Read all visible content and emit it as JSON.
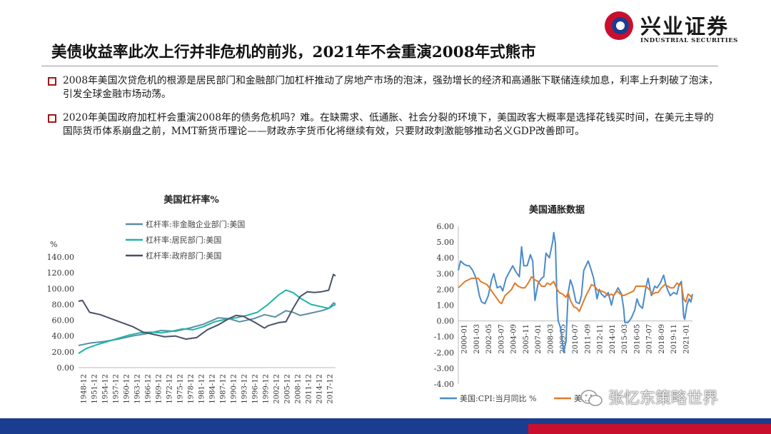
{
  "logo": {
    "cn": "兴业证券",
    "en": "INDUSTRIAL SECURITIES"
  },
  "title": "美债收益率此次上行并非危机的前兆，2021年不会重演2008年式熊市",
  "bullets": [
    "2008年美国次贷危机的根源是居民部门和金融部门加杠杆推动了房地产市场的泡沫，强劲增长的经济和高通胀下联储连续加息，利率上升刺破了泡沫，引发全球金融市场动荡。",
    "2020年美国政府加杠杆会重演2008年的债务危机吗？难。在缺需求、低通胀、社会分裂的环境下，美国政客大概率是选择花钱买时间，在美元主导的国际货币体系崩盘之前，MMT新货币理论——财政赤字货币化将继续有效，只要财政刺激能够推动名义GDP改善即可。"
  ],
  "watermark": "张忆东策略世界",
  "colors": {
    "brand_blue": "#1b3d8f",
    "brand_red": "#c8102e",
    "bullet_red": "#a01818"
  },
  "chart_data": [
    {
      "type": "line",
      "title": "美国杠杆率%",
      "ylabel": "%",
      "ylim": [
        0,
        140
      ],
      "yticks": [
        "0.00",
        "20.00",
        "40.00",
        "60.00",
        "80.00",
        "100.00",
        "120.00",
        "140.00"
      ],
      "xticks": [
        "1948-12",
        "1951-12",
        "1954-12",
        "1957-12",
        "1960-12",
        "1963-12",
        "1966-12",
        "1969-12",
        "1972-12",
        "1975-12",
        "1978-12",
        "1981-12",
        "1984-12",
        "1987-12",
        "1990-12",
        "1993-12",
        "1996-12",
        "1999-12",
        "2002-12",
        "2005-12",
        "2008-12",
        "2011-12",
        "2014-12",
        "2017-12"
      ],
      "xlim": [
        1948.9,
        2020.9
      ],
      "legend": "top-left",
      "series": [
        {
          "name": "杠杆率:非金融企业部门:美国",
          "color": "#5b8ea6",
          "points": [
            [
              1948.9,
              28
            ],
            [
              1952,
              31
            ],
            [
              1956,
              33
            ],
            [
              1960,
              36
            ],
            [
              1964,
              40
            ],
            [
              1968,
              43
            ],
            [
              1972,
              47
            ],
            [
              1976,
              46
            ],
            [
              1980,
              50
            ],
            [
              1984,
              55
            ],
            [
              1988,
              63
            ],
            [
              1991,
              62
            ],
            [
              1994,
              58
            ],
            [
              1998,
              62
            ],
            [
              2001,
              67
            ],
            [
              2004,
              64
            ],
            [
              2007,
              72
            ],
            [
              2009,
              70
            ],
            [
              2011,
              66
            ],
            [
              2014,
              69
            ],
            [
              2017,
              72
            ],
            [
              2019,
              75
            ],
            [
              2020.4,
              82
            ],
            [
              2020.9,
              80
            ]
          ]
        },
        {
          "name": "杠杆率:居民部门:美国",
          "color": "#1fb5a8",
          "points": [
            [
              1948.9,
              18
            ],
            [
              1951,
              24
            ],
            [
              1954,
              29
            ],
            [
              1957,
              33
            ],
            [
              1960,
              37
            ],
            [
              1963,
              41
            ],
            [
              1966,
              44
            ],
            [
              1969,
              45
            ],
            [
              1972,
              44
            ],
            [
              1975,
              46
            ],
            [
              1978,
              49
            ],
            [
              1981,
              48
            ],
            [
              1984,
              52
            ],
            [
              1987,
              58
            ],
            [
              1990,
              61
            ],
            [
              1993,
              63
            ],
            [
              1996,
              66
            ],
            [
              1999,
              70
            ],
            [
              2002,
              80
            ],
            [
              2005,
              92
            ],
            [
              2007,
              98
            ],
            [
              2009,
              95
            ],
            [
              2011,
              88
            ],
            [
              2014,
              80
            ],
            [
              2017,
              77
            ],
            [
              2019,
              75
            ],
            [
              2020.4,
              79
            ],
            [
              2020.9,
              79
            ]
          ]
        },
        {
          "name": "杠杆率:政府部门:美国",
          "color": "#4a5068",
          "points": [
            [
              1948.9,
              84
            ],
            [
              1950,
              85
            ],
            [
              1952,
              70
            ],
            [
              1955,
              67
            ],
            [
              1958,
              62
            ],
            [
              1961,
              57
            ],
            [
              1964,
              52
            ],
            [
              1967,
              45
            ],
            [
              1970,
              42
            ],
            [
              1973,
              39
            ],
            [
              1976,
              40
            ],
            [
              1979,
              36
            ],
            [
              1982,
              38
            ],
            [
              1985,
              48
            ],
            [
              1988,
              54
            ],
            [
              1991,
              62
            ],
            [
              1993,
              66
            ],
            [
              1995,
              65
            ],
            [
              1998,
              58
            ],
            [
              2001,
              50
            ],
            [
              2002,
              53
            ],
            [
              2005,
              57
            ],
            [
              2007,
              58
            ],
            [
              2009,
              75
            ],
            [
              2011,
              90
            ],
            [
              2013,
              96
            ],
            [
              2015,
              95
            ],
            [
              2017,
              96
            ],
            [
              2019,
              98
            ],
            [
              2020.3,
              118
            ],
            [
              2020.9,
              116
            ]
          ]
        }
      ]
    },
    {
      "type": "line",
      "title": "美国通胀数据",
      "ylim": [
        -4,
        6
      ],
      "yticks": [
        "-4.00",
        "-3.00",
        "-2.00",
        "-1.00",
        "0.00",
        "1.00",
        "2.00",
        "3.00",
        "4.00",
        "5.00",
        "6.00"
      ],
      "xticks": [
        "2000-01",
        "2001-03",
        "2002-05",
        "2003-07",
        "2004-09",
        "2005-11",
        "2007-01",
        "2008-03",
        "2009-05",
        "2010-07",
        "2011-09",
        "2012-11",
        "2014-01",
        "2015-03",
        "2016-05",
        "2017-07",
        "2018-09",
        "2019-11",
        "2021-01"
      ],
      "xlim": [
        2000.0,
        2021.1
      ],
      "legend": "bottom",
      "series": [
        {
          "name": "美国:CPI:当月同比 %",
          "color": "#4a8bc9",
          "points": [
            [
              2000.0,
              3.2
            ],
            [
              2000.2,
              3.8
            ],
            [
              2000.5,
              3.6
            ],
            [
              2000.8,
              3.5
            ],
            [
              2001.0,
              3.5
            ],
            [
              2001.3,
              3.2
            ],
            [
              2001.6,
              2.7
            ],
            [
              2001.9,
              1.6
            ],
            [
              2002.1,
              1.2
            ],
            [
              2002.4,
              1.1
            ],
            [
              2002.7,
              1.6
            ],
            [
              2003.0,
              2.6
            ],
            [
              2003.2,
              3.0
            ],
            [
              2003.5,
              2.1
            ],
            [
              2003.8,
              2.2
            ],
            [
              2004.0,
              1.9
            ],
            [
              2004.3,
              2.7
            ],
            [
              2004.6,
              3.1
            ],
            [
              2004.9,
              3.5
            ],
            [
              2005.2,
              3.1
            ],
            [
              2005.5,
              2.8
            ],
            [
              2005.7,
              4.7
            ],
            [
              2005.9,
              3.5
            ],
            [
              2006.2,
              3.5
            ],
            [
              2006.5,
              4.2
            ],
            [
              2006.7,
              3.8
            ],
            [
              2006.9,
              1.3
            ],
            [
              2007.2,
              2.4
            ],
            [
              2007.5,
              2.7
            ],
            [
              2007.7,
              2.8
            ],
            [
              2007.9,
              4.3
            ],
            [
              2008.2,
              4.0
            ],
            [
              2008.5,
              5.0
            ],
            [
              2008.6,
              5.6
            ],
            [
              2008.75,
              4.9
            ],
            [
              2008.9,
              1.1
            ],
            [
              2009.0,
              0.0
            ],
            [
              2009.2,
              -0.4
            ],
            [
              2009.5,
              -2.0
            ],
            [
              2009.7,
              -1.3
            ],
            [
              2009.9,
              1.8
            ],
            [
              2010.1,
              2.6
            ],
            [
              2010.3,
              2.2
            ],
            [
              2010.6,
              1.2
            ],
            [
              2010.9,
              1.1
            ],
            [
              2011.1,
              1.6
            ],
            [
              2011.3,
              3.2
            ],
            [
              2011.7,
              3.8
            ],
            [
              2011.9,
              3.4
            ],
            [
              2012.2,
              2.7
            ],
            [
              2012.5,
              1.4
            ],
            [
              2012.7,
              2.0
            ],
            [
              2012.9,
              1.7
            ],
            [
              2013.2,
              1.5
            ],
            [
              2013.5,
              1.8
            ],
            [
              2013.8,
              1.0
            ],
            [
              2014.0,
              1.6
            ],
            [
              2014.4,
              2.1
            ],
            [
              2014.7,
              1.7
            ],
            [
              2014.9,
              0.8
            ],
            [
              2015.0,
              -0.1
            ],
            [
              2015.3,
              -0.1
            ],
            [
              2015.6,
              0.2
            ],
            [
              2015.9,
              0.7
            ],
            [
              2016.1,
              1.4
            ],
            [
              2016.3,
              1.0
            ],
            [
              2016.6,
              0.8
            ],
            [
              2016.9,
              2.1
            ],
            [
              2017.1,
              2.7
            ],
            [
              2017.4,
              1.6
            ],
            [
              2017.7,
              2.2
            ],
            [
              2017.9,
              2.1
            ],
            [
              2018.2,
              2.4
            ],
            [
              2018.5,
              2.9
            ],
            [
              2018.7,
              2.3
            ],
            [
              2018.9,
              1.9
            ],
            [
              2019.1,
              1.6
            ],
            [
              2019.4,
              1.8
            ],
            [
              2019.7,
              1.7
            ],
            [
              2019.9,
              2.3
            ],
            [
              2020.1,
              2.5
            ],
            [
              2020.3,
              0.3
            ],
            [
              2020.4,
              0.1
            ],
            [
              2020.6,
              1.0
            ],
            [
              2020.8,
              1.4
            ],
            [
              2020.95,
              1.2
            ],
            [
              2021.1,
              1.7
            ]
          ]
        },
        {
          "name": "美…",
          "color": "#e07b2a",
          "points": [
            [
              2000.0,
              2.1
            ],
            [
              2000.3,
              2.3
            ],
            [
              2000.6,
              2.5
            ],
            [
              2000.9,
              2.6
            ],
            [
              2001.2,
              2.7
            ],
            [
              2001.5,
              2.7
            ],
            [
              2001.8,
              2.7
            ],
            [
              2002.0,
              2.5
            ],
            [
              2002.3,
              2.4
            ],
            [
              2002.6,
              2.3
            ],
            [
              2002.9,
              2.0
            ],
            [
              2003.1,
              1.8
            ],
            [
              2003.4,
              1.5
            ],
            [
              2003.7,
              1.2
            ],
            [
              2003.9,
              1.1
            ],
            [
              2004.2,
              1.6
            ],
            [
              2004.5,
              1.8
            ],
            [
              2004.8,
              2.0
            ],
            [
              2005.1,
              2.4
            ],
            [
              2005.4,
              2.2
            ],
            [
              2005.7,
              2.1
            ],
            [
              2006.0,
              2.1
            ],
            [
              2006.3,
              2.4
            ],
            [
              2006.6,
              2.8
            ],
            [
              2006.9,
              2.6
            ],
            [
              2007.2,
              2.5
            ],
            [
              2007.5,
              2.2
            ],
            [
              2007.8,
              2.2
            ],
            [
              2008.0,
              2.4
            ],
            [
              2008.3,
              2.3
            ],
            [
              2008.6,
              2.5
            ],
            [
              2008.9,
              2.0
            ],
            [
              2009.1,
              1.8
            ],
            [
              2009.4,
              1.7
            ],
            [
              2009.7,
              1.5
            ],
            [
              2009.9,
              1.8
            ],
            [
              2010.1,
              1.3
            ],
            [
              2010.4,
              0.9
            ],
            [
              2010.7,
              0.8
            ],
            [
              2010.9,
              0.6
            ],
            [
              2011.2,
              1.1
            ],
            [
              2011.5,
              1.6
            ],
            [
              2011.8,
              2.0
            ],
            [
              2012.0,
              2.3
            ],
            [
              2012.3,
              2.2
            ],
            [
              2012.6,
              1.9
            ],
            [
              2012.9,
              1.9
            ],
            [
              2013.2,
              1.8
            ],
            [
              2013.5,
              1.6
            ],
            [
              2013.8,
              1.7
            ],
            [
              2014.0,
              1.6
            ],
            [
              2014.3,
              1.9
            ],
            [
              2014.6,
              1.7
            ],
            [
              2014.9,
              1.6
            ],
            [
              2015.2,
              1.7
            ],
            [
              2015.5,
              1.8
            ],
            [
              2015.8,
              1.9
            ],
            [
              2016.0,
              2.2
            ],
            [
              2016.3,
              2.2
            ],
            [
              2016.6,
              2.2
            ],
            [
              2016.9,
              2.2
            ],
            [
              2017.2,
              2.0
            ],
            [
              2017.5,
              1.7
            ],
            [
              2017.8,
              1.8
            ],
            [
              2018.0,
              1.8
            ],
            [
              2018.3,
              2.1
            ],
            [
              2018.6,
              2.3
            ],
            [
              2018.9,
              2.2
            ],
            [
              2019.1,
              2.1
            ],
            [
              2019.4,
              2.1
            ],
            [
              2019.7,
              2.4
            ],
            [
              2019.9,
              2.3
            ],
            [
              2020.1,
              2.3
            ],
            [
              2020.3,
              1.4
            ],
            [
              2020.5,
              1.2
            ],
            [
              2020.7,
              1.7
            ],
            [
              2020.9,
              1.6
            ],
            [
              2021.1,
              1.4
            ]
          ]
        }
      ]
    }
  ]
}
